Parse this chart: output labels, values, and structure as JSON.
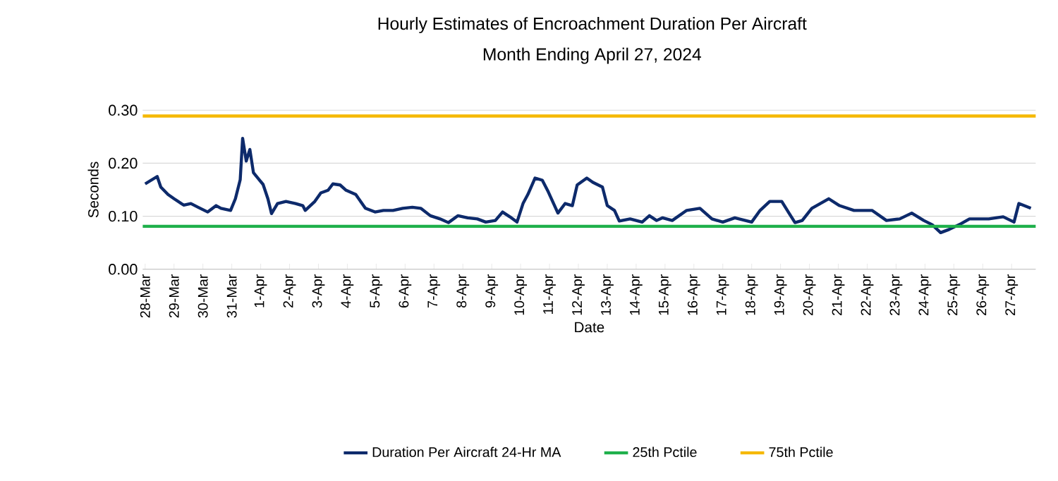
{
  "chart_data": {
    "type": "line",
    "title": "Hourly Estimates of Encroachment Duration Per Aircraft",
    "subtitle": "Month Ending April 27, 2024",
    "xlabel": "Date",
    "ylabel": "Seconds",
    "x": [
      "2024-03-28T00:00",
      "2024-03-28T05:00",
      "2024-03-28T10:00",
      "2024-03-28T13:00",
      "2024-03-28T19:00",
      "2024-03-29T00:00",
      "2024-03-29T08:00",
      "2024-03-29T14:00",
      "2024-03-29T20:00",
      "2024-03-30T04:00",
      "2024-03-30T11:00",
      "2024-03-30T15:00",
      "2024-03-30T23:00",
      "2024-03-31T03:00",
      "2024-03-31T07:00",
      "2024-03-31T09:00",
      "2024-03-31T12:00",
      "2024-03-31T15:00",
      "2024-03-31T18:00",
      "2024-04-01T02:00",
      "2024-04-01T06:00",
      "2024-04-01T09:00",
      "2024-04-01T14:00",
      "2024-04-01T21:00",
      "2024-04-02T05:00",
      "2024-04-02T11:00",
      "2024-04-02T13:00",
      "2024-04-02T21:00",
      "2024-04-03T02:00",
      "2024-04-03T08:00",
      "2024-04-03T12:00",
      "2024-04-03T18:00",
      "2024-04-03T23:00",
      "2024-04-04T07:00",
      "2024-04-04T15:00",
      "2024-04-04T23:00",
      "2024-04-05T06:00",
      "2024-04-05T14:00",
      "2024-04-05T22:00",
      "2024-04-06T06:00",
      "2024-04-06T13:00",
      "2024-04-06T21:00",
      "2024-04-07T05:00",
      "2024-04-07T12:00",
      "2024-04-07T20:00",
      "2024-04-08T04:00",
      "2024-04-08T12:00",
      "2024-04-08T19:00",
      "2024-04-09T03:00",
      "2024-04-09T09:00",
      "2024-04-09T15:00",
      "2024-04-09T21:00",
      "2024-04-10T02:00",
      "2024-04-10T06:00",
      "2024-04-10T12:00",
      "2024-04-10T18:00",
      "2024-04-10T23:00",
      "2024-04-11T07:00",
      "2024-04-11T13:00",
      "2024-04-11T19:00",
      "2024-04-11T23:00",
      "2024-04-12T07:00",
      "2024-04-12T12:00",
      "2024-04-12T20:00",
      "2024-04-13T00:00",
      "2024-04-13T06:00",
      "2024-04-13T10:00",
      "2024-04-13T19:00",
      "2024-04-14T05:00",
      "2024-04-14T11:00",
      "2024-04-14T17:00",
      "2024-04-14T22:00",
      "2024-04-15T06:00",
      "2024-04-15T18:00",
      "2024-04-16T05:00",
      "2024-04-16T15:00",
      "2024-04-17T00:00",
      "2024-04-17T10:00",
      "2024-04-18T00:00",
      "2024-04-18T07:00",
      "2024-04-18T15:00",
      "2024-04-19T01:00",
      "2024-04-19T07:00",
      "2024-04-19T12:00",
      "2024-04-19T18:00",
      "2024-04-20T02:00",
      "2024-04-20T16:00",
      "2024-04-21T01:00",
      "2024-04-21T13:00",
      "2024-04-22T04:00",
      "2024-04-22T16:00",
      "2024-04-23T03:00",
      "2024-04-23T13:00",
      "2024-04-23T23:00",
      "2024-04-24T06:00",
      "2024-04-24T13:00",
      "2024-04-24T20:00",
      "2024-04-25T06:00",
      "2024-04-25T13:00",
      "2024-04-26T05:00",
      "2024-04-26T17:00",
      "2024-04-27T02:00",
      "2024-04-27T06:00",
      "2024-04-27T16:00"
    ],
    "series": [
      {
        "name": "Duration Per Aircraft 24-Hr MA",
        "color": "#0d2a6b",
        "values": [
          0.161,
          0.168,
          0.175,
          0.155,
          0.141,
          0.133,
          0.121,
          0.124,
          0.117,
          0.108,
          0.12,
          0.115,
          0.111,
          0.133,
          0.169,
          0.247,
          0.204,
          0.226,
          0.182,
          0.16,
          0.133,
          0.105,
          0.124,
          0.128,
          0.124,
          0.12,
          0.111,
          0.128,
          0.144,
          0.149,
          0.161,
          0.159,
          0.149,
          0.141,
          0.115,
          0.108,
          0.111,
          0.111,
          0.115,
          0.117,
          0.115,
          0.101,
          0.095,
          0.088,
          0.101,
          0.097,
          0.095,
          0.089,
          0.092,
          0.108,
          0.099,
          0.089,
          0.124,
          0.141,
          0.172,
          0.168,
          0.146,
          0.106,
          0.124,
          0.12,
          0.159,
          0.172,
          0.164,
          0.155,
          0.12,
          0.111,
          0.091,
          0.095,
          0.089,
          0.101,
          0.092,
          0.097,
          0.092,
          0.111,
          0.115,
          0.095,
          0.089,
          0.097,
          0.089,
          0.111,
          0.128,
          0.128,
          0.106,
          0.088,
          0.092,
          0.115,
          0.133,
          0.12,
          0.111,
          0.111,
          0.092,
          0.095,
          0.106,
          0.092,
          0.084,
          0.069,
          0.075,
          0.086,
          0.095,
          0.095,
          0.099,
          0.089,
          0.124,
          0.115
        ]
      }
    ],
    "ref_lines": [
      {
        "axis": "y",
        "value": 0.081,
        "label": "25th Pctile",
        "color": "#1fb04b"
      },
      {
        "axis": "y",
        "value": 0.289,
        "label": "75th Pctile",
        "color": "#f5b800"
      }
    ],
    "xlim": [
      "2024-03-27T22:00",
      "2024-04-27T20:00"
    ],
    "ylim": [
      0,
      0.3
    ],
    "xticks": [
      {
        "value": "2024-03-28",
        "label": "28-Mar"
      },
      {
        "value": "2024-03-29",
        "label": "29-Mar"
      },
      {
        "value": "2024-03-30",
        "label": "30-Mar"
      },
      {
        "value": "2024-03-31",
        "label": "31-Mar"
      },
      {
        "value": "2024-04-01",
        "label": "1-Apr"
      },
      {
        "value": "2024-04-02",
        "label": "2-Apr"
      },
      {
        "value": "2024-04-03",
        "label": "3-Apr"
      },
      {
        "value": "2024-04-04",
        "label": "4-Apr"
      },
      {
        "value": "2024-04-05",
        "label": "5-Apr"
      },
      {
        "value": "2024-04-06",
        "label": "6-Apr"
      },
      {
        "value": "2024-04-07",
        "label": "7-Apr"
      },
      {
        "value": "2024-04-08",
        "label": "8-Apr"
      },
      {
        "value": "2024-04-09",
        "label": "9-Apr"
      },
      {
        "value": "2024-04-10",
        "label": "10-Apr"
      },
      {
        "value": "2024-04-11",
        "label": "11-Apr"
      },
      {
        "value": "2024-04-12",
        "label": "12-Apr"
      },
      {
        "value": "2024-04-13",
        "label": "13-Apr"
      },
      {
        "value": "2024-04-14",
        "label": "14-Apr"
      },
      {
        "value": "2024-04-15",
        "label": "15-Apr"
      },
      {
        "value": "2024-04-16",
        "label": "16-Apr"
      },
      {
        "value": "2024-04-17",
        "label": "17-Apr"
      },
      {
        "value": "2024-04-18",
        "label": "18-Apr"
      },
      {
        "value": "2024-04-19",
        "label": "19-Apr"
      },
      {
        "value": "2024-04-20",
        "label": "20-Apr"
      },
      {
        "value": "2024-04-21",
        "label": "21-Apr"
      },
      {
        "value": "2024-04-22",
        "label": "22-Apr"
      },
      {
        "value": "2024-04-23",
        "label": "23-Apr"
      },
      {
        "value": "2024-04-24",
        "label": "24-Apr"
      },
      {
        "value": "2024-04-25",
        "label": "25-Apr"
      },
      {
        "value": "2024-04-26",
        "label": "26-Apr"
      },
      {
        "value": "2024-04-27",
        "label": "27-Apr"
      }
    ],
    "yticks": [
      {
        "value": 0,
        "label": "0.00"
      },
      {
        "value": 0.1,
        "label": "0.10"
      },
      {
        "value": 0.2,
        "label": "0.20"
      },
      {
        "value": 0.3,
        "label": "0.30"
      }
    ],
    "grid": "y",
    "legend": "bottom"
  }
}
